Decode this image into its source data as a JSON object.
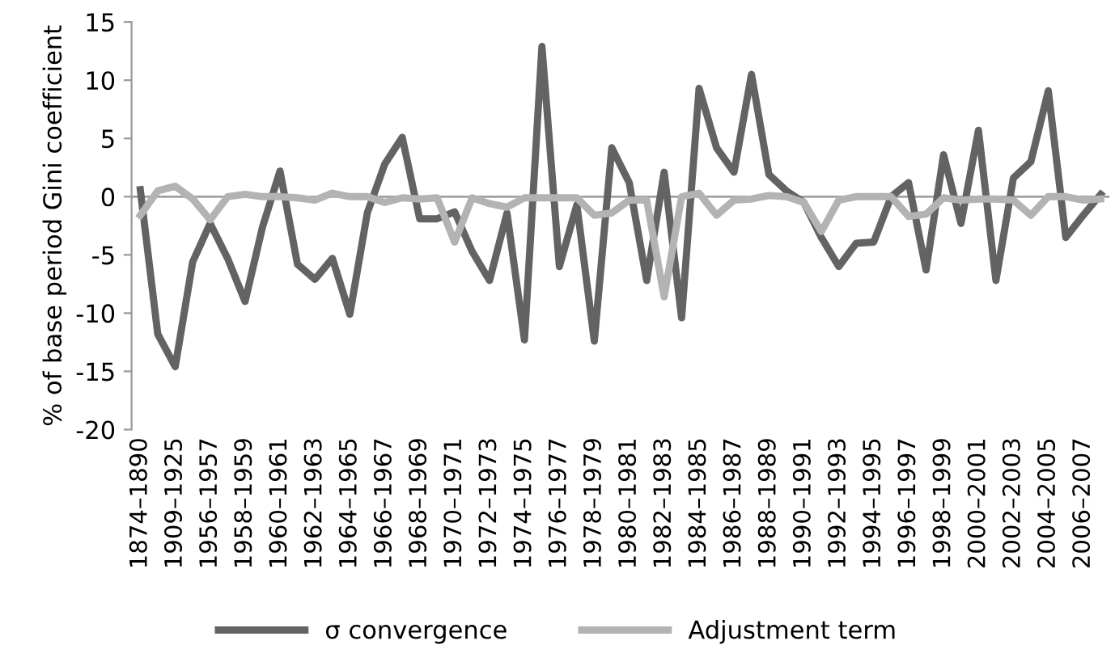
{
  "chart_data": {
    "type": "line",
    "ylabel": "% of base period Gini coefficient",
    "categories": [
      "1874–1890",
      null,
      "1909–1925",
      null,
      "1956–1957",
      null,
      "1958–1959",
      null,
      "1960–1961",
      null,
      "1962–1963",
      null,
      "1964–1965",
      null,
      "1966–1967",
      null,
      "1968–1969",
      null,
      "1970–1971",
      null,
      "1972–1973",
      null,
      "1974–1975",
      null,
      "1976–1977",
      null,
      "1978–1979",
      null,
      "1980–1981",
      null,
      "1982–1983",
      null,
      "1984–1985",
      null,
      "1986–1987",
      null,
      "1988–1989",
      null,
      "1990–1991",
      null,
      "1992–1993",
      null,
      "1994–1995",
      null,
      "1996–1997",
      null,
      "1998–1999",
      null,
      "2000–2001",
      null,
      "2002–2003",
      null,
      "2004–2005",
      null,
      "2006–2007",
      null
    ],
    "series": [
      {
        "name": "σ convergence",
        "color": "#636363",
        "values": [
          0.6,
          -11.8,
          -14.6,
          -5.6,
          -2.3,
          -5.3,
          -9.0,
          -2.6,
          2.2,
          -5.8,
          -7.1,
          -5.3,
          -10.1,
          -1.4,
          2.8,
          5.1,
          -1.9,
          -1.9,
          -1.3,
          -4.7,
          -7.2,
          -1.4,
          -12.3,
          12.9,
          -6.0,
          -0.7,
          -12.4,
          4.2,
          1.2,
          -7.2,
          2.1,
          -10.4,
          9.3,
          4.2,
          2.1,
          10.5,
          1.9,
          0.5,
          -0.5,
          -3.5,
          -6.0,
          -4.0,
          -3.9,
          0.0,
          1.2,
          -6.3,
          3.6,
          -2.3,
          5.7,
          -7.2,
          1.6,
          3.0,
          9.1,
          -3.5,
          -1.6,
          0.2
        ]
      },
      {
        "name": "Adjustment term",
        "color": "#b3b3b3",
        "values": [
          -1.6,
          0.5,
          0.9,
          -0.2,
          -2.0,
          0,
          0.2,
          0,
          0,
          -0.1,
          -0.3,
          0.3,
          0,
          0,
          -0.5,
          -0.1,
          -0.2,
          -0.1,
          -3.9,
          -0.1,
          -0.6,
          -0.9,
          -0.1,
          -0.1,
          -0.1,
          -0.1,
          -1.6,
          -1.4,
          -0.3,
          -0.3,
          -8.6,
          0,
          0.3,
          -1.6,
          -0.3,
          -0.2,
          0.1,
          0,
          -0.5,
          -3.0,
          -0.3,
          0,
          0,
          0,
          -1.7,
          -1.5,
          -0.1,
          -0.3,
          -0.2,
          -0.2,
          -0.3,
          -1.6,
          0,
          0,
          -0.3,
          -0.2
        ]
      }
    ],
    "ylim": [
      -20,
      15
    ],
    "yticks": [
      -20,
      -15,
      -10,
      -5,
      0,
      5,
      10,
      15
    ],
    "ref_lines": [
      {
        "axis": "y",
        "value": 0,
        "color": "#a0a0a0"
      }
    ],
    "grid": false,
    "legend": "bottom",
    "marker": "none",
    "line_style": "solid"
  }
}
